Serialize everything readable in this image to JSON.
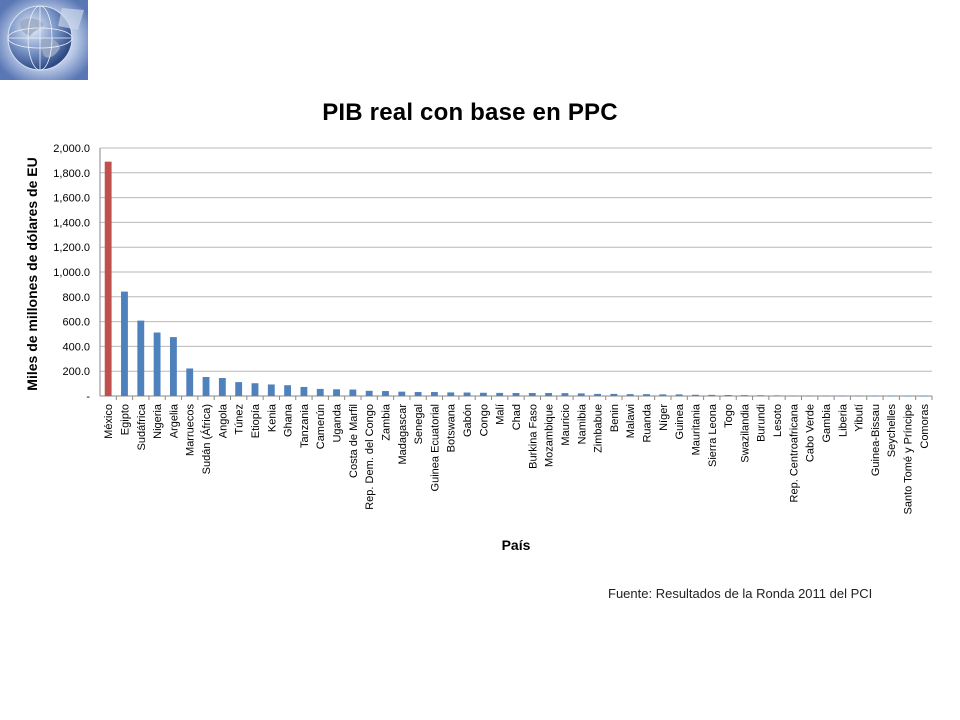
{
  "logo": {
    "icon": "globe-icon"
  },
  "source_note": "Fuente: Resultados de la Ronda 2011 del PCI",
  "colors": {
    "highlight": "#c0504d",
    "bars": "#4f81bd",
    "grid": "#b8b8b8"
  },
  "chart_data": {
    "type": "bar",
    "title": "PIB real con base en PPC",
    "xlabel": "País",
    "ylabel": "Miles de millones de dólares de EU",
    "ylim": [
      0,
      2000
    ],
    "yticks": [
      "-",
      "200.0",
      "400.0",
      "600.0",
      "800.0",
      "1,000.0",
      "1,200.0",
      "1,400.0",
      "1,600.0",
      "1,800.0",
      "2,000.0"
    ],
    "grid": true,
    "highlight_category": "México",
    "categories": [
      "México",
      "Egipto",
      "Sudáfrica",
      "Nigeria",
      "Argelia",
      "Marruecos",
      "Sudán (África)",
      "Angola",
      "Túnez",
      "Etiopía",
      "Kenia",
      "Ghana",
      "Tanzania",
      "Camerún",
      "Uganda",
      "Costa de Marfil",
      "Rep. Dem. del Congo",
      "Zambia",
      "Madagascar",
      "Senegal",
      "Guinea Ecuatorial",
      "Botswana",
      "Gabón",
      "Congo",
      "Malí",
      "Chad",
      "Burkina Faso",
      "Mozambique",
      "Mauricio",
      "Namibia",
      "Zimbabue",
      "Benin",
      "Malawi",
      "Ruanda",
      "Níger",
      "Guinea",
      "Mauritania",
      "Sierra Leona",
      "Togo",
      "Swazilandia",
      "Burundi",
      "Lesoto",
      "Rep. Centroafricana",
      "Cabo Verde",
      "Gambia",
      "Liberia",
      "Yibutí",
      "Guinea-Bissau",
      "Seychelles",
      "Santo Tomé y Príncipe",
      "Comoras"
    ],
    "values": [
      1890,
      842,
      608,
      512,
      475,
      222,
      153,
      145,
      112,
      103,
      93,
      87,
      73,
      57,
      54,
      52,
      42,
      40,
      35,
      32,
      32,
      29,
      28,
      26,
      25,
      24,
      24,
      24,
      23,
      21,
      17,
      17,
      15,
      15,
      13,
      13,
      10,
      9,
      8,
      7,
      6,
      5,
      4,
      4,
      4,
      3,
      3,
      2,
      2,
      1,
      1
    ]
  }
}
